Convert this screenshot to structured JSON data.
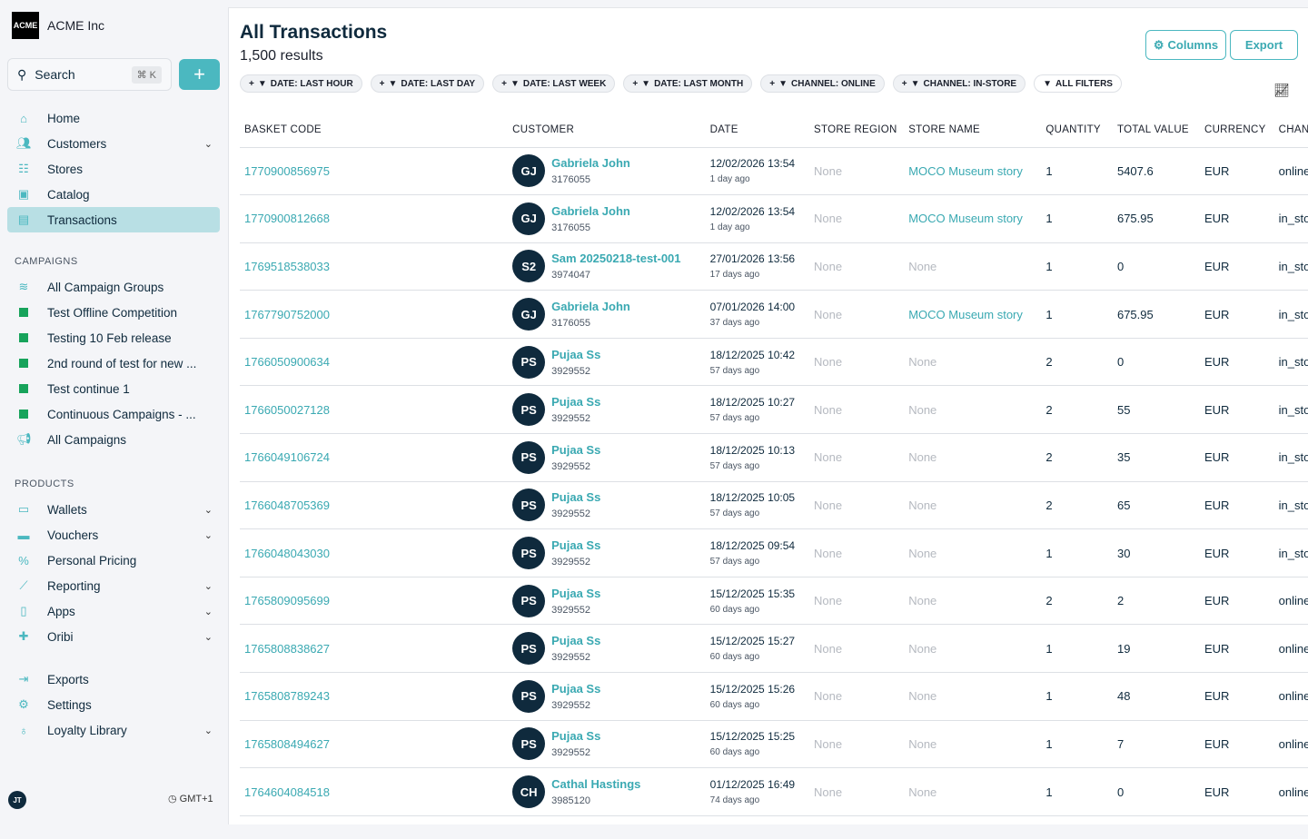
{
  "sidebar": {
    "brand_logo": "ACME",
    "brand_name": "ACME Inc",
    "search_label": "Search",
    "search_shortcut": "⌘ K",
    "add_label": "+",
    "items": [
      {
        "label": "Home",
        "icon": "home-icon"
      },
      {
        "label": "Customers",
        "icon": "users-icon",
        "chevron": true
      },
      {
        "label": "Stores",
        "icon": "store-icon"
      },
      {
        "label": "Catalog",
        "icon": "box-icon"
      },
      {
        "label": "Transactions",
        "icon": "receipt-icon",
        "active": true
      }
    ],
    "campaigns_title": "CAMPAIGNS",
    "campaigns": [
      {
        "label": "All Campaign Groups",
        "icon": "layers-icon"
      },
      {
        "label": "Test Offline Competition"
      },
      {
        "label": "Testing 10 Feb release"
      },
      {
        "label": "2nd round of test for new ..."
      },
      {
        "label": "Test continue 1"
      },
      {
        "label": "Continuous Campaigns - ..."
      },
      {
        "label": "All Campaigns",
        "icon": "megaphone-icon"
      }
    ],
    "products_title": "PRODUCTS",
    "products": [
      {
        "label": "Wallets",
        "icon": "wallet-icon",
        "chevron": true
      },
      {
        "label": "Vouchers",
        "icon": "ticket-icon",
        "chevron": true
      },
      {
        "label": "Personal Pricing",
        "icon": "percent-icon"
      },
      {
        "label": "Reporting",
        "icon": "chart-icon",
        "chevron": true
      },
      {
        "label": "Apps",
        "icon": "phone-icon",
        "chevron": true
      },
      {
        "label": "Oribi",
        "icon": "puzzle-icon",
        "chevron": true
      }
    ],
    "bottom": [
      {
        "label": "Exports",
        "icon": "export-icon"
      },
      {
        "label": "Settings",
        "icon": "gear-icon"
      },
      {
        "label": "Loyalty Library",
        "icon": "bulb-icon",
        "chevron": true
      }
    ],
    "user_initials": "JT",
    "timezone": "GMT+1"
  },
  "header": {
    "title": "All Transactions",
    "count": "1,500 results",
    "columns_label": "Columns",
    "export_label": "Export"
  },
  "filters": [
    "DATE: LAST HOUR",
    "DATE: LAST DAY",
    "DATE: LAST WEEK",
    "DATE: LAST MONTH",
    "CHANNEL: ONLINE",
    "CHANNEL: IN-STORE"
  ],
  "all_filters_label": "ALL FILTERS",
  "columns": [
    "BASKET CODE",
    "CUSTOMER",
    "DATE",
    "STORE REGION",
    "STORE NAME",
    "QUANTITY",
    "TOTAL VALUE",
    "CURRENCY",
    "CHANN"
  ],
  "rows": [
    [
      "1770900856975",
      "GJ",
      "Gabriela John",
      "3176055",
      "12/02/2026 13:54",
      "1 day ago",
      "None",
      "MOCO Museum story",
      "1",
      "5407.6",
      "EUR",
      "online"
    ],
    [
      "1770900812668",
      "GJ",
      "Gabriela John",
      "3176055",
      "12/02/2026 13:54",
      "1 day ago",
      "None",
      "MOCO Museum story",
      "1",
      "675.95",
      "EUR",
      "in_store"
    ],
    [
      "1769518538033",
      "S2",
      "Sam 20250218-test-001",
      "3974047",
      "27/01/2026 13:56",
      "17 days ago",
      "None",
      "None",
      "1",
      "0",
      "EUR",
      "in_store"
    ],
    [
      "1767790752000",
      "GJ",
      "Gabriela John",
      "3176055",
      "07/01/2026 14:00",
      "37 days ago",
      "None",
      "MOCO Museum story",
      "1",
      "675.95",
      "EUR",
      "in_store"
    ],
    [
      "1766050900634",
      "PS",
      "Pujaa Ss",
      "3929552",
      "18/12/2025 10:42",
      "57 days ago",
      "None",
      "None",
      "2",
      "0",
      "EUR",
      "in_store"
    ],
    [
      "1766050027128",
      "PS",
      "Pujaa Ss",
      "3929552",
      "18/12/2025 10:27",
      "57 days ago",
      "None",
      "None",
      "2",
      "55",
      "EUR",
      "in_store"
    ],
    [
      "1766049106724",
      "PS",
      "Pujaa Ss",
      "3929552",
      "18/12/2025 10:13",
      "57 days ago",
      "None",
      "None",
      "2",
      "35",
      "EUR",
      "in_store"
    ],
    [
      "1766048705369",
      "PS",
      "Pujaa Ss",
      "3929552",
      "18/12/2025 10:05",
      "57 days ago",
      "None",
      "None",
      "2",
      "65",
      "EUR",
      "in_store"
    ],
    [
      "1766048043030",
      "PS",
      "Pujaa Ss",
      "3929552",
      "18/12/2025 09:54",
      "57 days ago",
      "None",
      "None",
      "1",
      "30",
      "EUR",
      "in_store"
    ],
    [
      "1765809095699",
      "PS",
      "Pujaa Ss",
      "3929552",
      "15/12/2025 15:35",
      "60 days ago",
      "None",
      "None",
      "2",
      "2",
      "EUR",
      "online"
    ],
    [
      "1765808838627",
      "PS",
      "Pujaa Ss",
      "3929552",
      "15/12/2025 15:27",
      "60 days ago",
      "None",
      "None",
      "1",
      "19",
      "EUR",
      "online"
    ],
    [
      "1765808789243",
      "PS",
      "Pujaa Ss",
      "3929552",
      "15/12/2025 15:26",
      "60 days ago",
      "None",
      "None",
      "1",
      "48",
      "EUR",
      "online"
    ],
    [
      "1765808494627",
      "PS",
      "Pujaa Ss",
      "3929552",
      "15/12/2025 15:25",
      "60 days ago",
      "None",
      "None",
      "1",
      "7",
      "EUR",
      "online"
    ],
    [
      "1764604084518",
      "CH",
      "Cathal Hastings",
      "3985120",
      "01/12/2025 16:49",
      "74 days ago",
      "None",
      "None",
      "1",
      "0",
      "EUR",
      "online"
    ]
  ]
}
